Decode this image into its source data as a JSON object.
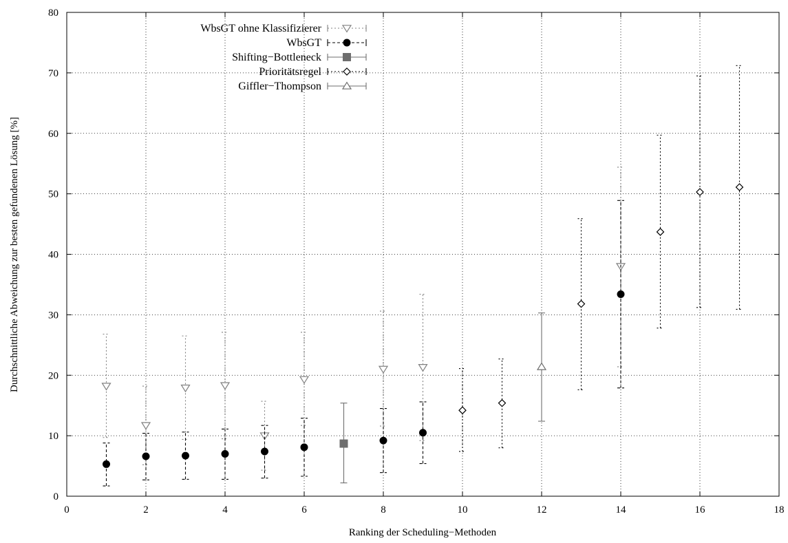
{
  "chart_data": {
    "type": "scatter",
    "xlabel": "Ranking der Scheduling−Methoden",
    "ylabel": "Durchschnittliche Abweichung zur besten gefundenen Lösung [%]",
    "xlim": [
      0,
      18
    ],
    "ylim": [
      0,
      80
    ],
    "x_ticks": [
      0,
      2,
      4,
      6,
      8,
      10,
      12,
      14,
      16,
      18
    ],
    "y_ticks": [
      0,
      10,
      20,
      30,
      40,
      50,
      60,
      70,
      80
    ],
    "grid": true,
    "legend_position": "top-left",
    "series": [
      {
        "name": "WbsGT ohne Klassifizierer",
        "marker": "triangle-down-open",
        "line": "dotted",
        "color": "#808080",
        "points": [
          {
            "x": 1,
            "y": 18.2,
            "low": 9.7,
            "high": 26.8
          },
          {
            "x": 2,
            "y": 11.7,
            "low": 5.2,
            "high": 18.2
          },
          {
            "x": 3,
            "y": 17.9,
            "low": 9.4,
            "high": 26.5
          },
          {
            "x": 4,
            "y": 18.3,
            "low": 9.5,
            "high": 27.1
          },
          {
            "x": 5,
            "y": 10.0,
            "low": 4.3,
            "high": 15.7
          },
          {
            "x": 6,
            "y": 19.3,
            "low": 11.7,
            "high": 27.1
          },
          {
            "x": 8,
            "y": 21.0,
            "low": 11.6,
            "high": 30.6
          },
          {
            "x": 9,
            "y": 21.3,
            "low": 9.2,
            "high": 33.4
          },
          {
            "x": 14,
            "y": 38.0,
            "low": 21.4,
            "high": 54.4
          }
        ]
      },
      {
        "name": "WbsGT",
        "marker": "circle-filled",
        "line": "dashed",
        "color": "#000000",
        "points": [
          {
            "x": 1,
            "y": 5.3,
            "low": 1.7,
            "high": 8.8
          },
          {
            "x": 2,
            "y": 6.6,
            "low": 2.7,
            "high": 10.4
          },
          {
            "x": 3,
            "y": 6.7,
            "low": 2.8,
            "high": 10.6
          },
          {
            "x": 4,
            "y": 7.0,
            "low": 2.8,
            "high": 11.1
          },
          {
            "x": 5,
            "y": 7.4,
            "low": 3.0,
            "high": 11.7
          },
          {
            "x": 6,
            "y": 8.1,
            "low": 3.3,
            "high": 12.9
          },
          {
            "x": 8,
            "y": 9.2,
            "low": 3.9,
            "high": 14.5
          },
          {
            "x": 9,
            "y": 10.5,
            "low": 5.4,
            "high": 15.6
          },
          {
            "x": 14,
            "y": 33.4,
            "low": 17.9,
            "high": 48.9
          }
        ]
      },
      {
        "name": "Shifting−Bottleneck",
        "marker": "square-filled",
        "line": "solid",
        "color": "#6e6e6e",
        "points": [
          {
            "x": 7,
            "y": 8.7,
            "low": 2.2,
            "high": 15.4
          }
        ]
      },
      {
        "name": "Prioritätsregel",
        "marker": "diamond-open",
        "line": "dotted",
        "color": "#000000",
        "points": [
          {
            "x": 10,
            "y": 14.2,
            "low": 7.4,
            "high": 21.1
          },
          {
            "x": 11,
            "y": 15.4,
            "low": 8.0,
            "high": 22.7
          },
          {
            "x": 13,
            "y": 31.8,
            "low": 17.6,
            "high": 45.9
          },
          {
            "x": 15,
            "y": 43.7,
            "low": 27.8,
            "high": 59.7
          },
          {
            "x": 16,
            "y": 50.3,
            "low": 31.2,
            "high": 69.5
          },
          {
            "x": 17,
            "y": 51.1,
            "low": 30.9,
            "high": 71.2
          }
        ]
      },
      {
        "name": "Giffler−Thompson",
        "marker": "triangle-up-open",
        "line": "solid",
        "color": "#6e6e6e",
        "points": [
          {
            "x": 12,
            "y": 21.4,
            "low": 12.4,
            "high": 30.3
          }
        ]
      }
    ]
  }
}
